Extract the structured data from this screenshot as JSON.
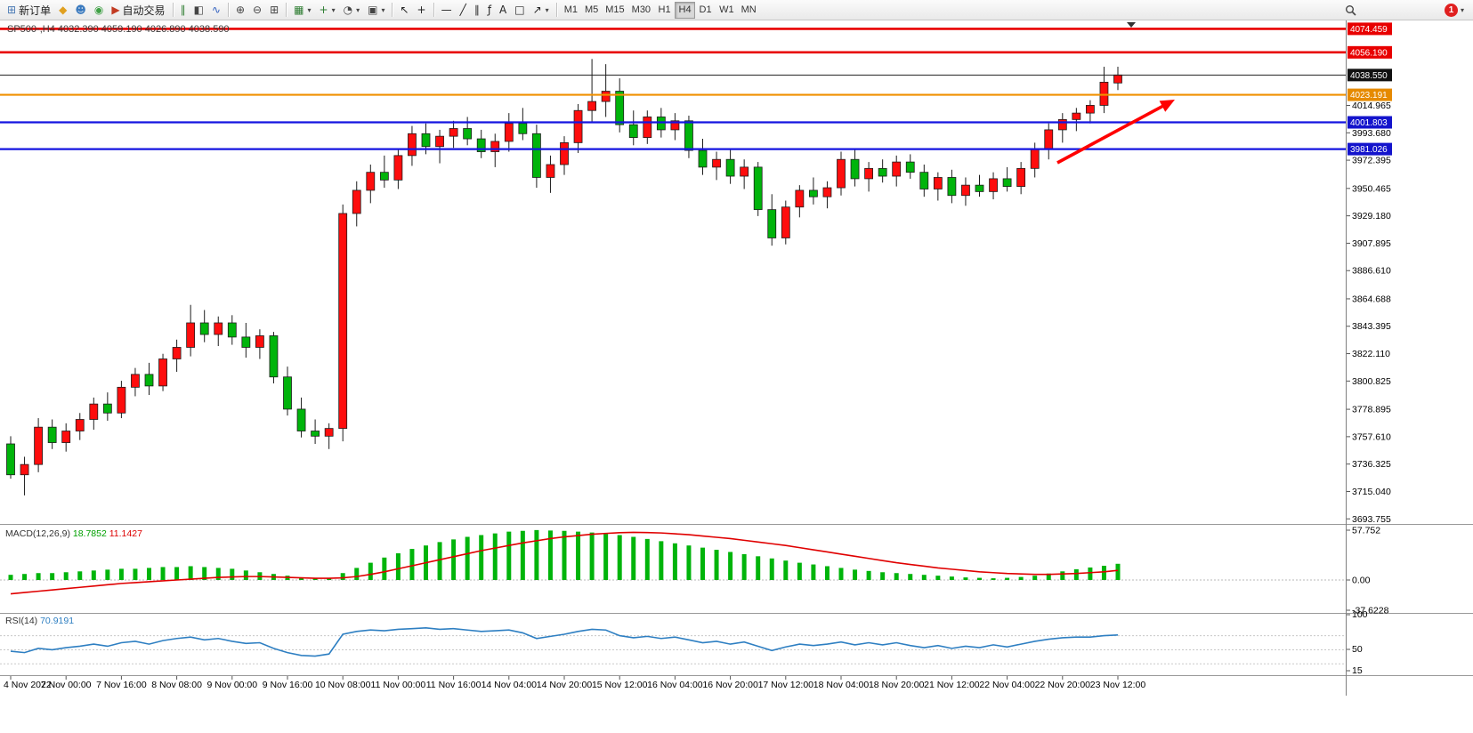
{
  "toolbar": {
    "caret_icon": "▾",
    "notification_count": "1",
    "active_timeframe": "H4",
    "timeframes": [
      "M1",
      "M5",
      "M15",
      "M30",
      "H1",
      "H4",
      "D1",
      "W1",
      "MN"
    ],
    "tools": [
      {
        "name": "new-order",
        "icon": "⊞",
        "icon_color": "#4a7ab5",
        "label": "新订单"
      },
      {
        "name": "wallet",
        "icon": "◆",
        "icon_color": "#e0a020"
      },
      {
        "name": "support",
        "icon": "☻",
        "icon_color": "#3a7abf"
      },
      {
        "name": "community",
        "icon": "◉",
        "icon_color": "#3fa045"
      },
      {
        "name": "auto-trading",
        "icon": "▶",
        "icon_color": "#c23b22",
        "label": "自动交易"
      },
      {
        "sep": true
      },
      {
        "name": "bar-chart",
        "icon": "∥",
        "icon_color": "#2f7d32"
      },
      {
        "name": "candlestick-chart",
        "icon": "◧",
        "icon_color": "#444444"
      },
      {
        "name": "line-chart",
        "icon": "∿",
        "icon_color": "#2f5fbf"
      },
      {
        "sep": true
      },
      {
        "name": "zoom-in",
        "icon": "⊕",
        "icon_color": "#444444"
      },
      {
        "name": "zoom-out",
        "icon": "⊖",
        "icon_color": "#444444"
      },
      {
        "name": "tile-windows",
        "icon": "⊞",
        "icon_color": "#444444"
      },
      {
        "sep": true
      },
      {
        "name": "indicators",
        "icon": "▦",
        "icon_color": "#2e7d32",
        "dropdown": true
      },
      {
        "name": "add-indicator",
        "icon": "+",
        "icon_color": "#2e7d32",
        "dropdown": true
      },
      {
        "name": "periods",
        "icon": "◔",
        "icon_color": "#444444",
        "dropdown": true
      },
      {
        "name": "chart-template",
        "icon": "▣",
        "icon_color": "#444444",
        "dropdown": true
      },
      {
        "sep": true
      },
      {
        "name": "cursor",
        "icon": "↖",
        "icon_color": "#222222"
      },
      {
        "name": "crosshair",
        "icon": "+",
        "icon_color": "#222222"
      },
      {
        "sep": true
      },
      {
        "name": "horizontal-line",
        "icon": "—",
        "icon_color": "#222222"
      },
      {
        "name": "trendline",
        "icon": "╱",
        "icon_color": "#222222"
      },
      {
        "name": "channel",
        "icon": "∥",
        "icon_color": "#222222"
      },
      {
        "name": "fibonacci",
        "icon": "ƒ",
        "icon_color": "#222222"
      },
      {
        "name": "text-label",
        "icon": "A",
        "icon_color": "#222222"
      },
      {
        "name": "shapes",
        "icon": "□",
        "icon_color": "#222222"
      },
      {
        "name": "arrow-objects",
        "icon": "↗",
        "icon_color": "#222222",
        "dropdown": true
      },
      {
        "sep": true
      }
    ]
  },
  "chart": {
    "title": "SP500-,H4",
    "ohlc": {
      "open": "4032.390",
      "high": "4059.190",
      "low": "4026.890",
      "close": "4038.590"
    },
    "levels": [
      {
        "name": "resistance-line-1",
        "label": "4074.459",
        "price": 4074.459,
        "line_color": "#e80000",
        "badge_color": "#e80000",
        "width": 2.6
      },
      {
        "name": "resistance-line-2",
        "label": "4056.190",
        "price": 4056.19,
        "line_color": "#e80000",
        "badge_color": "#e80000",
        "width": 2.6
      },
      {
        "name": "current-price-line",
        "label": "4038.550",
        "price": 4038.55,
        "line_color": "#222222",
        "badge_color": "#111111",
        "width": 1
      },
      {
        "name": "pivot-line",
        "label": "4023.191",
        "price": 4023.191,
        "line_color": "#f09000",
        "badge_color": "#e68a00",
        "width": 2.2
      },
      {
        "name": "support-line-1",
        "label": "4001.803",
        "price": 4001.803,
        "line_color": "#1414e0",
        "badge_color": "#1414cc",
        "width": 2.2
      },
      {
        "name": "support-line-2",
        "label": "3981.026",
        "price": 3981.026,
        "line_color": "#1414e0",
        "badge_color": "#1414cc",
        "width": 2.2
      }
    ],
    "price_ticks": [
      "4014.965",
      "3993.680",
      "3972.395",
      "3950.465",
      "3929.180",
      "3907.895",
      "3886.610",
      "3864.688",
      "3843.395",
      "3822.110",
      "3800.825",
      "3778.895",
      "3757.610",
      "3736.325",
      "3715.040",
      "3693.755"
    ],
    "macd_title": "MACD(12,26,9)",
    "macd_value": "18.7852",
    "macd_signal_value": "11.1427",
    "macd_scale": [
      "57.752",
      "0.00",
      "-37.6228"
    ],
    "rsi_title": "RSI(14)",
    "rsi_value": "70.9191",
    "rsi_scale": [
      "100",
      "50",
      "15"
    ]
  },
  "chart_data": {
    "type": "candlestick",
    "symbol": "SP500-",
    "timeframe": "H4",
    "convention": "red = bullish, green = bearish (Chinese convention)",
    "up_color": "#fe0d0d",
    "down_color": "#00b40b",
    "label_step": 4,
    "time_labels": [
      "4 Nov 2022",
      "7 Nov 00:00",
      "7 Nov 16:00",
      "8 Nov 08:00",
      "9 Nov 00:00",
      "9 Nov 16:00",
      "10 Nov 08:00",
      "11 Nov 00:00",
      "11 Nov 16:00",
      "14 Nov 04:00",
      "14 Nov 20:00",
      "15 Nov 12:00",
      "16 Nov 04:00",
      "16 Nov 20:00",
      "17 Nov 12:00",
      "18 Nov 04:00",
      "18 Nov 20:00",
      "21 Nov 12:00",
      "22 Nov 04:00",
      "22 Nov 20:00",
      "23 Nov 12:00"
    ],
    "candles": [
      [
        3752,
        3758,
        3725,
        3728
      ],
      [
        3728,
        3742,
        3712,
        3736
      ],
      [
        3736,
        3772,
        3730,
        3765
      ],
      [
        3765,
        3771,
        3748,
        3753
      ],
      [
        3753,
        3768,
        3746,
        3762
      ],
      [
        3762,
        3776,
        3755,
        3771
      ],
      [
        3771,
        3788,
        3763,
        3783
      ],
      [
        3783,
        3792,
        3770,
        3776
      ],
      [
        3776,
        3801,
        3772,
        3796
      ],
      [
        3796,
        3811,
        3789,
        3806
      ],
      [
        3806,
        3815,
        3790,
        3797
      ],
      [
        3797,
        3822,
        3793,
        3818
      ],
      [
        3818,
        3833,
        3808,
        3827
      ],
      [
        3827,
        3860,
        3820,
        3846
      ],
      [
        3846,
        3856,
        3831,
        3837
      ],
      [
        3837,
        3851,
        3828,
        3846
      ],
      [
        3846,
        3852,
        3829,
        3835
      ],
      [
        3835,
        3846,
        3819,
        3827
      ],
      [
        3827,
        3841,
        3818,
        3836
      ],
      [
        3836,
        3839,
        3799,
        3804
      ],
      [
        3804,
        3812,
        3774,
        3779
      ],
      [
        3779,
        3788,
        3757,
        3762
      ],
      [
        3762,
        3771,
        3752,
        3758
      ],
      [
        3758,
        3768,
        3748,
        3764
      ],
      [
        3764,
        3938,
        3754,
        3931
      ],
      [
        3931,
        3956,
        3921,
        3949
      ],
      [
        3949,
        3969,
        3939,
        3963
      ],
      [
        3963,
        3976,
        3951,
        3957
      ],
      [
        3957,
        3981,
        3950,
        3976
      ],
      [
        3976,
        3999,
        3968,
        3993
      ],
      [
        3993,
        4001,
        3977,
        3983
      ],
      [
        3983,
        3996,
        3970,
        3991
      ],
      [
        3991,
        4003,
        3982,
        3997
      ],
      [
        3997,
        4006,
        3984,
        3989
      ],
      [
        3989,
        3996,
        3974,
        3979
      ],
      [
        3979,
        3993,
        3967,
        3987
      ],
      [
        3987,
        4009,
        3979,
        4001
      ],
      [
        4001,
        4013,
        3988,
        3993
      ],
      [
        3993,
        4000,
        3951,
        3959
      ],
      [
        3959,
        3976,
        3947,
        3969
      ],
      [
        3969,
        3991,
        3961,
        3986
      ],
      [
        3986,
        4016,
        3978,
        4011
      ],
      [
        4011,
        4051,
        4002,
        4018
      ],
      [
        4018,
        4047,
        4006,
        4026
      ],
      [
        4026,
        4036,
        3994,
        4000
      ],
      [
        4000,
        4011,
        3984,
        3990
      ],
      [
        3990,
        4011,
        3985,
        4006
      ],
      [
        4006,
        4013,
        3990,
        3996
      ],
      [
        3996,
        4009,
        3988,
        4003
      ],
      [
        4003,
        4007,
        3974,
        3980
      ],
      [
        3980,
        3989,
        3961,
        3967
      ],
      [
        3967,
        3979,
        3957,
        3973
      ],
      [
        3973,
        3981,
        3954,
        3960
      ],
      [
        3960,
        3973,
        3950,
        3967
      ],
      [
        3967,
        3971,
        3929,
        3934
      ],
      [
        3934,
        3946,
        3906,
        3912
      ],
      [
        3912,
        3941,
        3907,
        3936
      ],
      [
        3936,
        3953,
        3928,
        3949
      ],
      [
        3949,
        3959,
        3938,
        3944
      ],
      [
        3944,
        3956,
        3935,
        3951
      ],
      [
        3951,
        3979,
        3945,
        3973
      ],
      [
        3973,
        3981,
        3952,
        3958
      ],
      [
        3958,
        3971,
        3948,
        3966
      ],
      [
        3966,
        3973,
        3955,
        3960
      ],
      [
        3960,
        3976,
        3952,
        3971
      ],
      [
        3971,
        3977,
        3958,
        3963
      ],
      [
        3963,
        3969,
        3944,
        3950
      ],
      [
        3950,
        3963,
        3941,
        3959
      ],
      [
        3959,
        3965,
        3939,
        3945
      ],
      [
        3945,
        3959,
        3937,
        3953
      ],
      [
        3953,
        3961,
        3944,
        3948
      ],
      [
        3948,
        3963,
        3942,
        3958
      ],
      [
        3958,
        3967,
        3948,
        3952
      ],
      [
        3952,
        3971,
        3946,
        3966
      ],
      [
        3966,
        3986,
        3959,
        3981
      ],
      [
        3981,
        4001,
        3973,
        3996
      ],
      [
        3996,
        4009,
        3986,
        4004
      ],
      [
        4004,
        4013,
        3995,
        4009
      ],
      [
        4009,
        4019,
        4001,
        4015
      ],
      [
        4015,
        4045,
        4009,
        4033
      ],
      [
        4032.39,
        4045,
        4026.89,
        4038.59
      ]
    ],
    "macd": {
      "hist_color": "#00b40b",
      "signal_color": "#e00000",
      "range": [
        -37.6228,
        57.752
      ],
      "histogram": [
        6,
        7,
        8,
        8,
        9,
        10,
        11,
        12,
        13,
        13,
        14,
        15,
        15,
        16,
        15,
        14,
        13,
        11,
        9,
        7,
        5,
        3,
        2,
        2,
        8,
        14,
        20,
        26,
        31,
        36,
        40,
        44,
        47,
        50,
        52,
        54,
        56,
        57,
        57.8,
        57.4,
        57,
        56,
        55,
        53.5,
        52,
        50,
        47.5,
        45,
        42.5,
        40,
        37.5,
        35,
        32.5,
        30,
        27.5,
        25,
        22.5,
        20,
        18,
        16,
        14,
        12,
        10.5,
        9,
        8,
        7,
        6,
        5,
        4,
        3,
        2.5,
        2,
        2.5,
        3.5,
        5,
        7.5,
        10,
        12.5,
        14.5,
        16.5,
        18.79
      ],
      "signal": [
        -16,
        -14.5,
        -13,
        -11.5,
        -10,
        -8.5,
        -7,
        -5.5,
        -4,
        -3,
        -2,
        -1,
        0,
        1,
        2,
        3,
        3.5,
        4,
        4,
        3.5,
        3,
        2.5,
        2,
        2,
        2.5,
        4,
        6.5,
        9.5,
        13,
        16.5,
        20,
        23.5,
        27,
        30.5,
        34,
        37,
        40,
        43,
        45.5,
        48,
        50,
        51.5,
        53,
        54,
        54.8,
        55.2,
        55,
        54.5,
        53.5,
        52.5,
        51,
        49.5,
        48,
        46,
        44,
        42,
        40,
        37.5,
        35,
        32.5,
        30,
        27.5,
        25,
        22.5,
        20,
        18,
        16,
        14,
        12.5,
        11,
        9.5,
        8.5,
        7.5,
        7,
        6.5,
        6.5,
        7,
        7.5,
        8.5,
        9.5,
        11.14
      ]
    },
    "rsi": {
      "color": "#2e7fc2",
      "levels": [
        70,
        50,
        30
      ],
      "range": [
        0,
        100
      ],
      "series": [
        48,
        46,
        52,
        50,
        53,
        55,
        58,
        55,
        60,
        62,
        58,
        63,
        66,
        68,
        64,
        66,
        62,
        59,
        60,
        52,
        46,
        42,
        41,
        44,
        72,
        76,
        78,
        77,
        79,
        80,
        81,
        79,
        80,
        78,
        76,
        77,
        78,
        74,
        66,
        69,
        72,
        76,
        79,
        78,
        70,
        67,
        69,
        66,
        68,
        64,
        60,
        62,
        58,
        61,
        55,
        49,
        54,
        58,
        56,
        58,
        61,
        57,
        60,
        57,
        60,
        56,
        53,
        56,
        52,
        55,
        53,
        57,
        54,
        58,
        62,
        65,
        67,
        68,
        68,
        70,
        70.92
      ]
    },
    "annotation": {
      "type": "arrow",
      "color": "#ff0000",
      "from": [
        1188,
        183
      ],
      "to": [
        1320,
        112
      ]
    }
  }
}
